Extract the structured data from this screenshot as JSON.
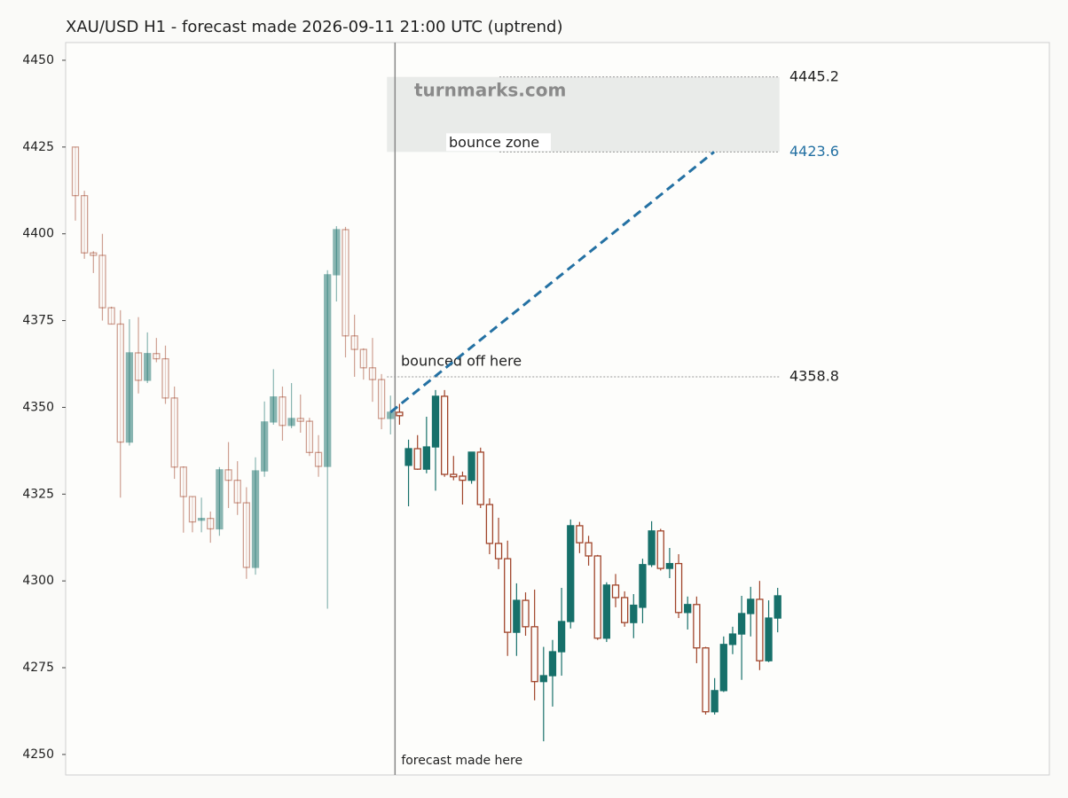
{
  "chart_data": {
    "type": "candlestick",
    "title": "XAU/USD H1 - forecast made 2026-09-11 21:00 UTC (uptrend)",
    "watermark": "turnmarks.com",
    "ylim": [
      4244.1,
      4455.1
    ],
    "yticks": [
      4250,
      4275,
      4300,
      4325,
      4350,
      4375,
      4400,
      4425,
      4450
    ],
    "colors": {
      "up": "#17706a",
      "down": "#a0442a",
      "forecast": "#2471a3",
      "zone": "#e9ebe9"
    },
    "past": {
      "open": [
        4425,
        4411,
        4394.5,
        4393.8,
        4378.7,
        4374,
        4340,
        4365.7,
        4357.8,
        4365.5,
        4364,
        4352.7,
        4332.8,
        4324.3,
        4317.5,
        4318,
        4315,
        4332,
        4329,
        4322.5,
        4303.9,
        4331.7,
        4345.8,
        4353,
        4344.8,
        4346.8,
        4346,
        4337,
        4333,
        4388.2,
        4401.2,
        4370.6,
        4366.7,
        4361.4,
        4358,
        4346.8
      ],
      "high": [
        4425,
        4412.4,
        4395,
        4400,
        4379,
        4378,
        4375.4,
        4376,
        4371.6,
        4370,
        4367.8,
        4356,
        4333,
        4324.3,
        4324,
        4320,
        4332.8,
        4340,
        4334.5,
        4327,
        4335.6,
        4351.7,
        4361,
        4356,
        4357,
        4353.7,
        4347,
        4342,
        4389.5,
        4402.2,
        4402,
        4376.7,
        4367,
        4370,
        4359.6,
        4353.4
      ],
      "low": [
        4403.8,
        4392.8,
        4388.7,
        4375,
        4374,
        4324,
        4339,
        4354,
        4357,
        4363,
        4351,
        4329.4,
        4313.9,
        4314,
        4314,
        4311,
        4313,
        4321,
        4319,
        4300.6,
        4301.8,
        4330,
        4345,
        4340.4,
        4344,
        4342.7,
        4336,
        4330,
        4292,
        4380.5,
        4364.4,
        4358.8,
        4358,
        4351.6,
        4343.7,
        4342.2
      ],
      "close": [
        4411,
        4394.5,
        4393.8,
        4378.7,
        4374,
        4340,
        4365.7,
        4357.8,
        4365.5,
        4364,
        4352.7,
        4332.8,
        4324.3,
        4317,
        4318,
        4315,
        4332,
        4329,
        4322.5,
        4303.9,
        4331.7,
        4345.8,
        4353,
        4344.8,
        4346.8,
        4346,
        4337,
        4333,
        4388.2,
        4401.2,
        4370.6,
        4366.7,
        4361.4,
        4358,
        4346.8,
        4348.6
      ]
    },
    "after": {
      "open": [
        4348.6,
        4333.3,
        4338.1,
        4332.2,
        4338.6,
        4353.2,
        4330.7,
        4330.2,
        4329,
        4337.1,
        4322,
        4310.8,
        4306.4,
        4285.2,
        4294.4,
        4286.8,
        4271,
        4272.7,
        4279.6,
        4288.3,
        4315.9,
        4311,
        4307.2,
        4283.5,
        4298.8,
        4295.2,
        4288,
        4292.4,
        4304.7,
        4314.4,
        4303.6,
        4305,
        4290.9,
        4293.2,
        4280.7,
        4262.3,
        4268.4,
        4281.7,
        4284.7,
        4290.6,
        4294.7,
        4277,
        4289.3
      ],
      "high": [
        4351,
        4340.7,
        4342,
        4347.3,
        4355,
        4355,
        4336,
        4331.5,
        4337.2,
        4338.4,
        4323.8,
        4318.2,
        4311.6,
        4299.3,
        4296.7,
        4297.5,
        4281,
        4283,
        4298,
        4317.7,
        4317,
        4313,
        4307.5,
        4299.6,
        4302,
        4297,
        4296.2,
        4306.4,
        4317.2,
        4315,
        4309.5,
        4307.7,
        4295.5,
        4295.5,
        4281,
        4272,
        4284,
        4286.8,
        4295.7,
        4298.3,
        4300,
        4294.4,
        4298
      ],
      "low": [
        4345,
        4321.5,
        4332,
        4331,
        4326,
        4330,
        4329,
        4322,
        4328,
        4321,
        4307.7,
        4303.4,
        4278.4,
        4278.4,
        4284.2,
        4265.6,
        4253.8,
        4263.8,
        4272.7,
        4286.3,
        4308,
        4304.4,
        4283,
        4282.4,
        4292.4,
        4286.8,
        4283.5,
        4287.8,
        4304,
        4303,
        4300.8,
        4289.3,
        4286,
        4276.3,
        4261.5,
        4261.5,
        4268,
        4278.9,
        4271.5,
        4284,
        4274.3,
        4276.6,
        4285.2
      ],
      "close": [
        4347.6,
        4338.1,
        4332.2,
        4338.6,
        4353.2,
        4330.7,
        4330,
        4329,
        4337.1,
        4322,
        4310.8,
        4306.4,
        4285.2,
        4294.4,
        4286.8,
        4271,
        4272.7,
        4279.6,
        4288.3,
        4315.9,
        4311,
        4307.2,
        4283.5,
        4298.8,
        4295.2,
        4288,
        4293,
        4304.7,
        4314.4,
        4303.6,
        4305,
        4290.9,
        4293.2,
        4280.7,
        4262.3,
        4268.4,
        4281.7,
        4284.7,
        4290.6,
        4294.7,
        4277,
        4289.3,
        4295.7
      ]
    },
    "bounce_zone": {
      "label": "bounce zone",
      "high": 4445.2,
      "low": 4423.6
    },
    "bounce_level": {
      "label": "bounced off here",
      "value": 4358.8
    },
    "forecast_marker": "forecast made here"
  }
}
